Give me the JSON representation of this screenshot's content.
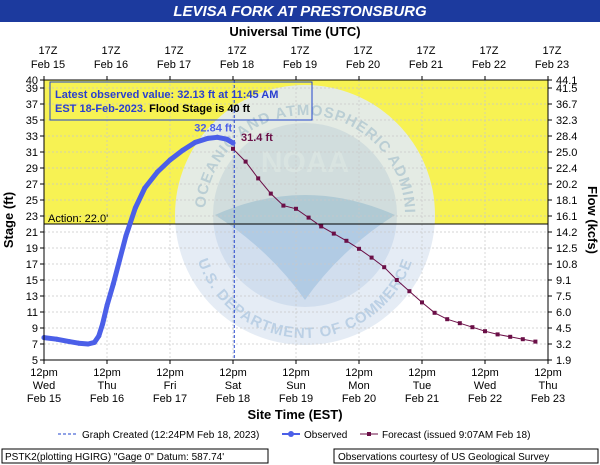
{
  "title": "LEVISA FORK AT PRESTONSBURG",
  "top_axis_title": "Universal Time (UTC)",
  "bottom_axis_title": "Site Time (EST)",
  "left_axis_title": "Stage (ft)",
  "right_axis_title": "Flow (kcfs)",
  "top_ticks": [
    {
      "l1": "17Z",
      "l2": "Feb 15"
    },
    {
      "l1": "17Z",
      "l2": "Feb 16"
    },
    {
      "l1": "17Z",
      "l2": "Feb 17"
    },
    {
      "l1": "17Z",
      "l2": "Feb 18"
    },
    {
      "l1": "17Z",
      "l2": "Feb 19"
    },
    {
      "l1": "17Z",
      "l2": "Feb 20"
    },
    {
      "l1": "17Z",
      "l2": "Feb 21"
    },
    {
      "l1": "17Z",
      "l2": "Feb 22"
    },
    {
      "l1": "17Z",
      "l2": "Feb 23"
    }
  ],
  "bottom_ticks": [
    {
      "l1": "12pm",
      "l2": "Wed",
      "l3": "Feb 15"
    },
    {
      "l1": "12pm",
      "l2": "Thu",
      "l3": "Feb 16"
    },
    {
      "l1": "12pm",
      "l2": "Fri",
      "l3": "Feb 17"
    },
    {
      "l1": "12pm",
      "l2": "Sat",
      "l3": "Feb 18"
    },
    {
      "l1": "12pm",
      "l2": "Sun",
      "l3": "Feb 19"
    },
    {
      "l1": "12pm",
      "l2": "Mon",
      "l3": "Feb 20"
    },
    {
      "l1": "12pm",
      "l2": "Tue",
      "l3": "Feb 21"
    },
    {
      "l1": "12pm",
      "l2": "Wed",
      "l3": "Feb 22"
    },
    {
      "l1": "12pm",
      "l2": "Thu",
      "l3": "Feb 23"
    }
  ],
  "stage_ticks": [
    "5",
    "7",
    "9",
    "11",
    "13",
    "15",
    "17",
    "19",
    "21",
    "23",
    "25",
    "27",
    "29",
    "31",
    "33",
    "35",
    "37",
    "39",
    "40"
  ],
  "flow_ticks": [
    {
      "stage": 5,
      "label": "1.9"
    },
    {
      "stage": 7,
      "label": "3.2"
    },
    {
      "stage": 9,
      "label": "4.5"
    },
    {
      "stage": 11,
      "label": "6.0"
    },
    {
      "stage": 13,
      "label": "7.5"
    },
    {
      "stage": 15,
      "label": "9.1"
    },
    {
      "stage": 17,
      "label": "10.8"
    },
    {
      "stage": 19,
      "label": "12.5"
    },
    {
      "stage": 21,
      "label": "14.2"
    },
    {
      "stage": 23,
      "label": "16.1"
    },
    {
      "stage": 25,
      "label": "18.1"
    },
    {
      "stage": 27,
      "label": "20.2"
    },
    {
      "stage": 29,
      "label": "22.4"
    },
    {
      "stage": 31,
      "label": "25.0"
    },
    {
      "stage": 33,
      "label": "28.4"
    },
    {
      "stage": 35,
      "label": "32.3"
    },
    {
      "stage": 37,
      "label": "36.7"
    },
    {
      "stage": 39,
      "label": "41.5"
    },
    {
      "stage": 40,
      "label": "44.1"
    }
  ],
  "info_box": {
    "line1": "Latest observed value: 32.13  ft at 11:45 AM",
    "line2a": "EST 18-Feb-2023.",
    "line2b": " Flood Stage is 40 ft"
  },
  "action_label": "Action: 22.0'",
  "peak_observed_label": "32.84 ft",
  "peak_forecast_label": "31.4 ft",
  "legend": {
    "graph_created": "Graph Created (12:24PM Feb 18, 2023)",
    "observed": "Observed",
    "forecast": "Forecast (issued 9:07AM Feb 18)"
  },
  "footer": {
    "left": "PSTK2(plotting HGIRG) \"Gage 0\" Datum:  587.74'",
    "right": "Observations courtesy of US Geological Survey"
  },
  "watermark": {
    "ring_top": "NATIONAL OCEANIC AND ATMOSPHERIC ADMINISTRATION",
    "ring_bottom": "U.S. DEPARTMENT OF COMMERCE",
    "center": "NOAA"
  },
  "colors": {
    "title_bar": "#1c3a9e",
    "observed": "#4b5fe8",
    "forecast": "#6b0f47",
    "flood_zone": "#f7f253",
    "action_line": "#000000"
  },
  "chart_data": {
    "type": "line",
    "title": "LEVISA FORK AT PRESTONSBURG",
    "xlabel": "Site Time (EST)",
    "ylabel": "Stage (ft)",
    "y2label": "Flow (kcfs)",
    "x_units": "days after Feb 15 12pm EST",
    "xlim": [
      0,
      8
    ],
    "ylim": [
      5,
      40
    ],
    "flood_stage": 40,
    "action_stage": 22.0,
    "graph_created_x": 3.02,
    "series": [
      {
        "name": "Observed",
        "points": [
          [
            0,
            7.8
          ],
          [
            0.2,
            7.6
          ],
          [
            0.4,
            7.3
          ],
          [
            0.55,
            7.1
          ],
          [
            0.7,
            7.0
          ],
          [
            0.8,
            7.2
          ],
          [
            0.87,
            8.0
          ],
          [
            0.93,
            9.5
          ],
          [
            1.0,
            11.8
          ],
          [
            1.1,
            14.5
          ],
          [
            1.2,
            17.5
          ],
          [
            1.3,
            20.5
          ],
          [
            1.45,
            24.0
          ],
          [
            1.6,
            26.5
          ],
          [
            1.8,
            28.5
          ],
          [
            2.0,
            30.0
          ],
          [
            2.2,
            31.2
          ],
          [
            2.4,
            32.2
          ],
          [
            2.6,
            32.7
          ],
          [
            2.75,
            32.84
          ],
          [
            2.9,
            32.6
          ],
          [
            3.0,
            32.13
          ]
        ]
      },
      {
        "name": "Forecast (issued 9:07AM Feb 18)",
        "points": [
          [
            3.0,
            31.4
          ],
          [
            3.2,
            29.8
          ],
          [
            3.4,
            27.7
          ],
          [
            3.6,
            25.8
          ],
          [
            3.8,
            24.3
          ],
          [
            4.0,
            23.9
          ],
          [
            4.2,
            22.8
          ],
          [
            4.4,
            21.7
          ],
          [
            4.6,
            20.8
          ],
          [
            4.8,
            19.9
          ],
          [
            5.0,
            18.9
          ],
          [
            5.2,
            17.8
          ],
          [
            5.4,
            16.6
          ],
          [
            5.6,
            15.0
          ],
          [
            5.8,
            13.6
          ],
          [
            6.0,
            12.2
          ],
          [
            6.2,
            10.9
          ],
          [
            6.4,
            10.1
          ],
          [
            6.6,
            9.6
          ],
          [
            6.8,
            9.1
          ],
          [
            7.0,
            8.6
          ],
          [
            7.2,
            8.2
          ],
          [
            7.4,
            7.9
          ],
          [
            7.6,
            7.6
          ],
          [
            7.8,
            7.3
          ]
        ]
      }
    ]
  }
}
